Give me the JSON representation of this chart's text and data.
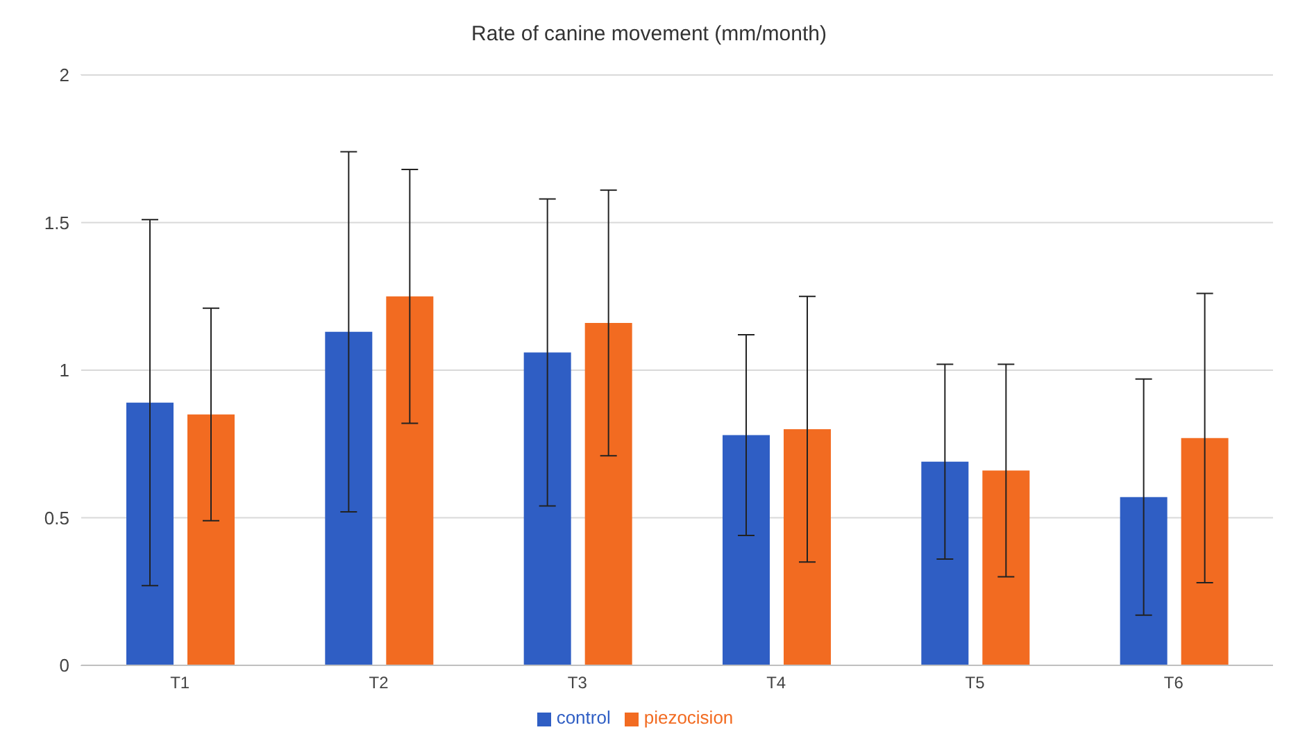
{
  "chart_data": {
    "type": "bar",
    "title": "Rate of canine movement (mm/month)",
    "categories": [
      "T1",
      "T2",
      "T3",
      "T4",
      "T5",
      "T6"
    ],
    "series": [
      {
        "name": "control",
        "color": "#2f5ec4",
        "values": [
          0.89,
          1.13,
          1.06,
          0.78,
          0.69,
          0.57
        ],
        "errors": [
          0.62,
          0.61,
          0.52,
          0.34,
          0.33,
          0.4
        ]
      },
      {
        "name": "piezocision",
        "color": "#f26b21",
        "values": [
          0.85,
          1.25,
          1.16,
          0.8,
          0.66,
          0.77
        ],
        "errors": [
          0.36,
          0.43,
          0.45,
          0.45,
          0.36,
          0.49
        ]
      }
    ],
    "ylim": [
      0,
      2
    ],
    "yticks": [
      0,
      0.5,
      1,
      1.5,
      2
    ],
    "grid": "y",
    "legend": "bottom"
  }
}
